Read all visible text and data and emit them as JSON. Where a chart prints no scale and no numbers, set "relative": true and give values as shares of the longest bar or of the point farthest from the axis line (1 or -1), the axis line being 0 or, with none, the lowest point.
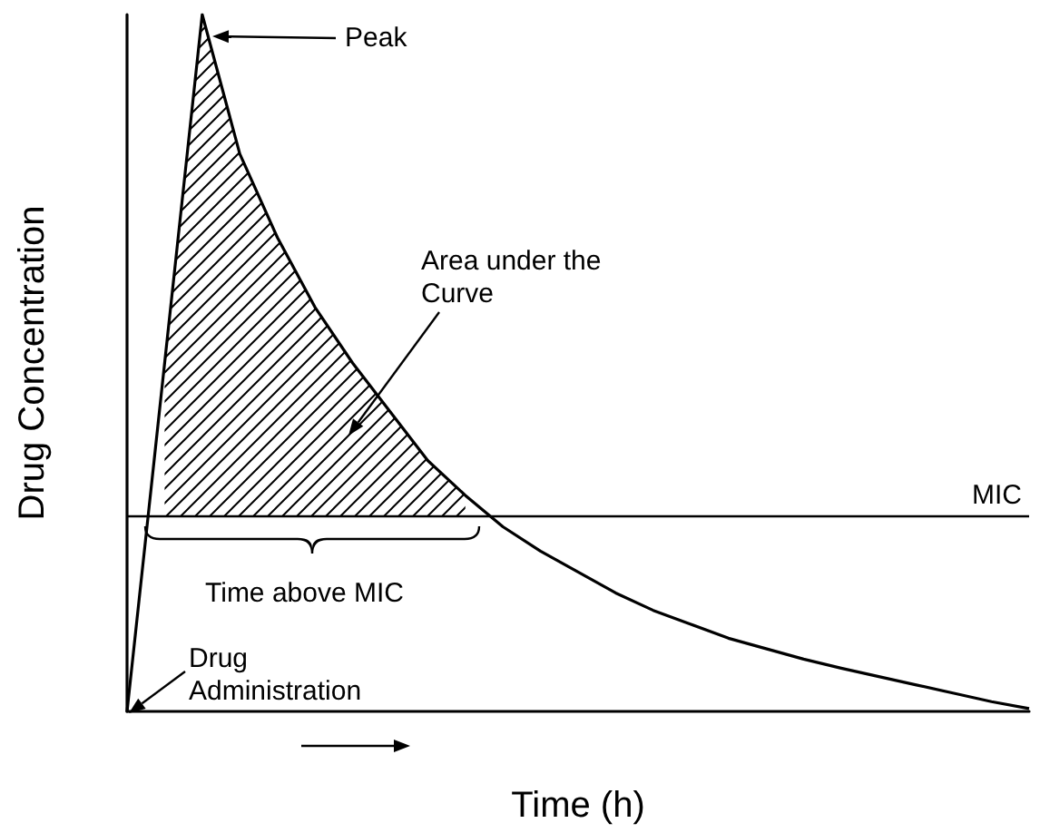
{
  "chart_data": {
    "type": "line",
    "relative": true,
    "xlabel": "Time (h)",
    "ylabel": "Drug Concentration",
    "categories": [
      null,
      null,
      null,
      null,
      null,
      null,
      null,
      null,
      null,
      null,
      null,
      null,
      null,
      null,
      null,
      null,
      null,
      null,
      null,
      null,
      null,
      null,
      null,
      null,
      null
    ],
    "series": [
      {
        "color": "#000000",
        "values": [
          0,
          0.5,
          1,
          0.8,
          0.68,
          0.58,
          0.5,
          0.43,
          0.36,
          0.31,
          0.265,
          0.23,
          0.2,
          0.17,
          0.145,
          0.125,
          0.105,
          0.09,
          0.075,
          0.062,
          0.05,
          0.038,
          0.026,
          0.014,
          0.004
        ],
        "lower": [
          null,
          0.28,
          0.28,
          0.28,
          0.28,
          0.28,
          0.28,
          0.28,
          0.28,
          0.28,
          null,
          null,
          null,
          null,
          null,
          null,
          null,
          null,
          null,
          null,
          null,
          null,
          null,
          null,
          null
        ],
        "upper": [
          null,
          0.5,
          1,
          0.8,
          0.68,
          0.58,
          0.5,
          0.43,
          0.36,
          0.31,
          null,
          null,
          null,
          null,
          null,
          null,
          null,
          null,
          null,
          null,
          null,
          null,
          null,
          null,
          null
        ]
      }
    ],
    "ref_lines": [
      {
        "axis": "y",
        "value": 0.28,
        "label": "MIC",
        "color": "#000000"
      }
    ],
    "annotations": [
      "Peak",
      "Area under the Curve",
      "Time above MIC",
      "Drug Administration"
    ],
    "marker": "none",
    "line_style": "solid"
  }
}
